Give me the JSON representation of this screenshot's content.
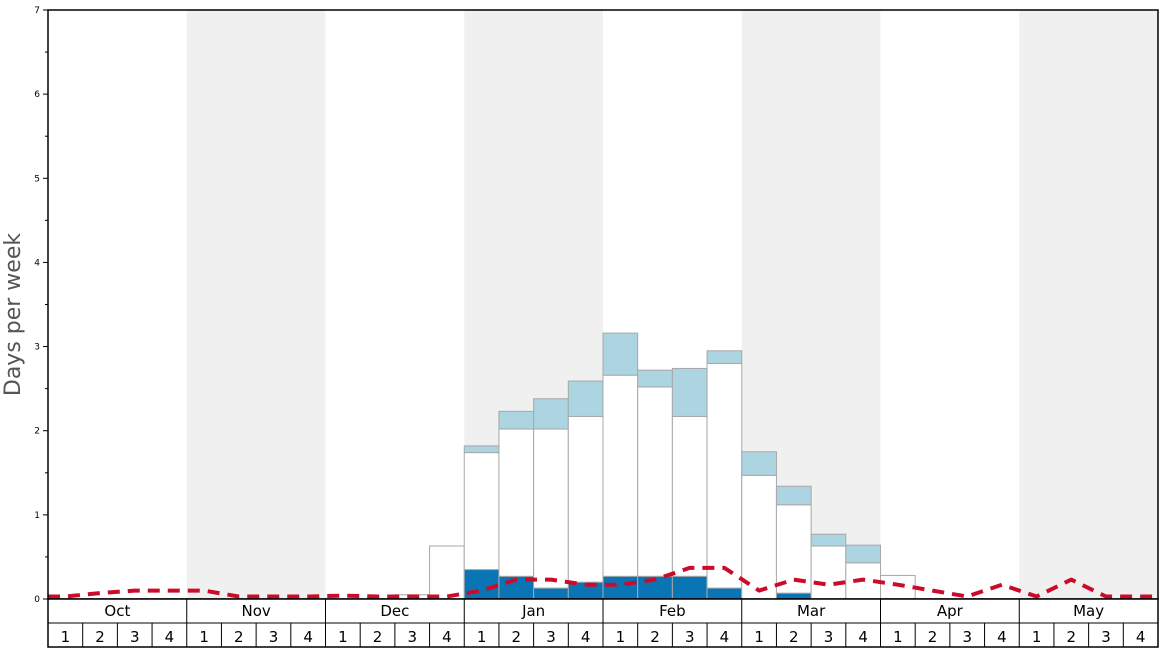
{
  "chart_data": {
    "type": "bar",
    "title": "",
    "xlabel": "",
    "ylabel": "Days per week",
    "ylim": [
      0,
      7
    ],
    "yticks": [
      0,
      1,
      2,
      3,
      4,
      5,
      6,
      7
    ],
    "months": [
      "Oct",
      "Nov",
      "Dec",
      "Jan",
      "Feb",
      "Mar",
      "Apr",
      "May"
    ],
    "weeks_per_month": 4,
    "week_labels": [
      "1",
      "2",
      "3",
      "4"
    ],
    "grid": false,
    "stacked": true,
    "series": [
      {
        "color": "#0a75b4",
        "values": [
          0,
          0,
          0,
          0,
          0,
          0,
          0,
          0,
          0,
          0,
          0,
          0,
          0.35,
          0.27,
          0.13,
          0.2,
          0.27,
          0.27,
          0.27,
          0.13,
          0,
          0.07,
          0,
          0,
          0,
          0,
          0,
          0,
          0,
          0,
          0,
          0
        ]
      },
      {
        "color": "#ffffff",
        "values": [
          0,
          0,
          0,
          0,
          0,
          0,
          0,
          0,
          0,
          0,
          0.05,
          0.63,
          1.39,
          1.75,
          1.89,
          1.97,
          2.39,
          2.25,
          1.9,
          2.67,
          1.47,
          1.05,
          0.63,
          0.43,
          0.28,
          0,
          0,
          0,
          0,
          0,
          0,
          0
        ]
      },
      {
        "color": "#add4e1",
        "values": [
          0,
          0,
          0,
          0,
          0,
          0,
          0,
          0,
          0,
          0,
          0,
          0,
          0.08,
          0.21,
          0.36,
          0.42,
          0.5,
          0.2,
          0.57,
          0.15,
          0.28,
          0.22,
          0.14,
          0.21,
          0,
          0,
          0,
          0,
          0,
          0,
          0,
          0
        ]
      }
    ],
    "line": {
      "color": "#cc0a2a",
      "style": "dashed",
      "values": [
        0.03,
        0.07,
        0.1,
        0.1,
        0.1,
        0.03,
        0.03,
        0.03,
        0.04,
        0.03,
        0.03,
        0.03,
        0.1,
        0.23,
        0.23,
        0.17,
        0.17,
        0.23,
        0.37,
        0.37,
        0.1,
        0.23,
        0.17,
        0.23,
        0.17,
        0.1,
        0.03,
        0.17,
        0.03,
        0.23,
        0.03,
        0.03
      ]
    }
  }
}
